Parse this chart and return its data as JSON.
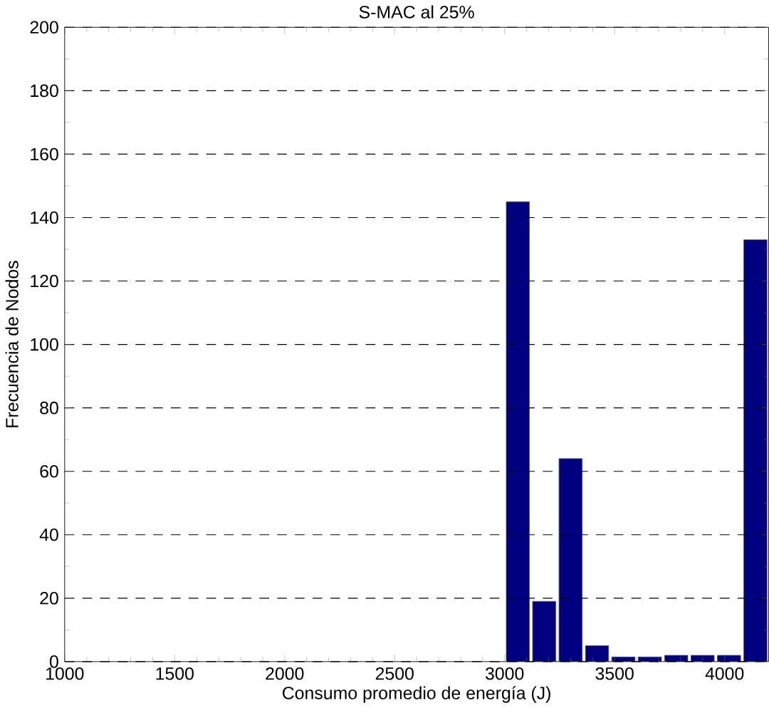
{
  "chart_data": {
    "type": "histogram",
    "title": "S-MAC al 25%",
    "xlabel": "Consumo promedio de energía (J)",
    "ylabel": "Frecuencia de Nodos",
    "bins": [
      3000,
      3120,
      3240,
      3360,
      3480,
      3600,
      3720,
      3840,
      3960,
      4080,
      4200
    ],
    "values": [
      145,
      19,
      64,
      5,
      1.5,
      1.5,
      2,
      2,
      2,
      133
    ],
    "color": "#000080",
    "xlim": [
      1000,
      4200
    ],
    "xticks": [
      1000,
      1500,
      2000,
      2500,
      3000,
      3500,
      4000
    ],
    "ylim": [
      0,
      200
    ],
    "yticks": [
      0,
      20,
      40,
      60,
      80,
      100,
      120,
      140,
      160,
      180,
      200
    ],
    "grid": "y"
  }
}
